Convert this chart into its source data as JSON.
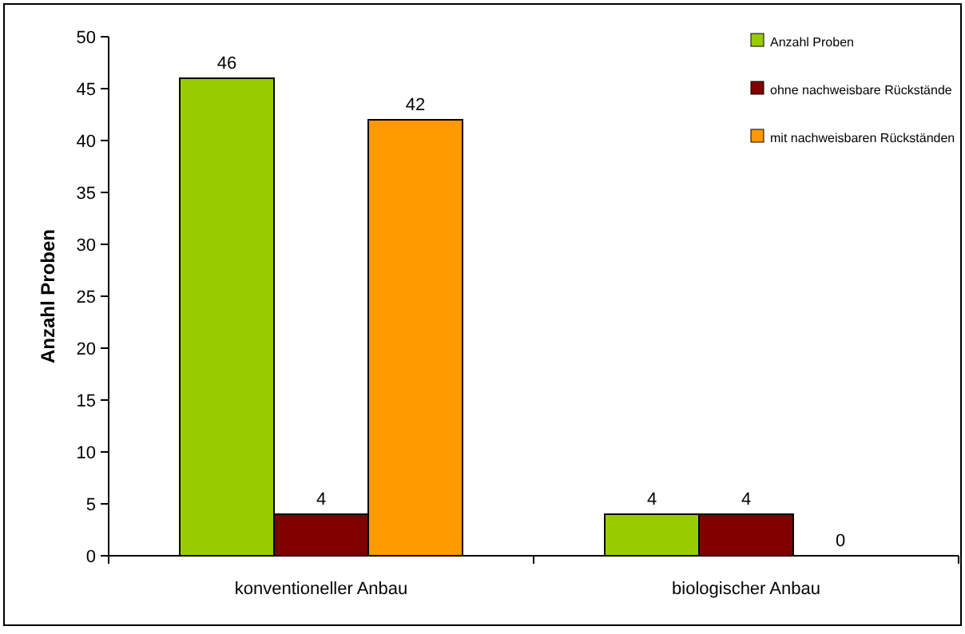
{
  "chart_data": {
    "type": "bar",
    "ylabel": "Anzahl Proben",
    "categories": [
      "konventioneller Anbau",
      "biologischer Anbau"
    ],
    "series": [
      {
        "name": "Anzahl Proben",
        "color": "#99cc00",
        "values": [
          46,
          4
        ]
      },
      {
        "name": "ohne nachweisbare Rückstände",
        "color": "#800000",
        "values": [
          4,
          4
        ]
      },
      {
        "name": "mit nachweisbaren Rückständen",
        "color": "#ff9900",
        "values": [
          42,
          0
        ]
      }
    ],
    "ylim": [
      0,
      50
    ],
    "yticks": [
      0,
      5,
      10,
      15,
      20,
      25,
      30,
      35,
      40,
      45,
      50
    ],
    "grid": false,
    "legend": "top right",
    "data_labels": true
  }
}
